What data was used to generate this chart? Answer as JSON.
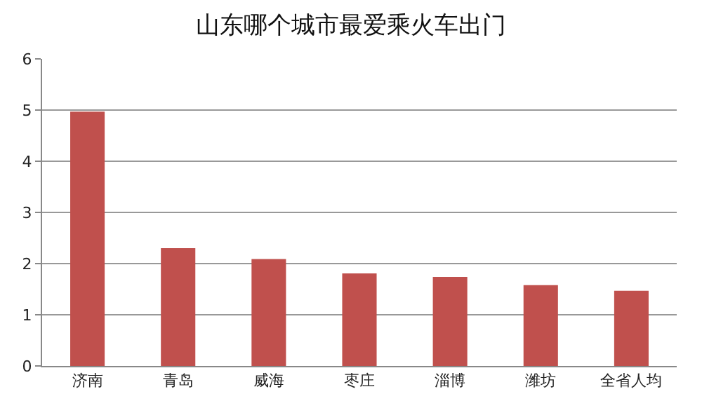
{
  "chart_data": {
    "type": "bar",
    "title": "山东哪个城市最爱乘火车出门",
    "categories": [
      "济南",
      "青岛",
      "威海",
      "枣庄",
      "淄博",
      "潍坊",
      "全省人均"
    ],
    "values": [
      4.97,
      2.3,
      2.09,
      1.81,
      1.74,
      1.58,
      1.47
    ],
    "color": "#c0504d",
    "ylim": [
      0,
      6
    ],
    "yticks": [
      0,
      1,
      2,
      3,
      4,
      5,
      6
    ],
    "grid": "y",
    "legend": false
  }
}
